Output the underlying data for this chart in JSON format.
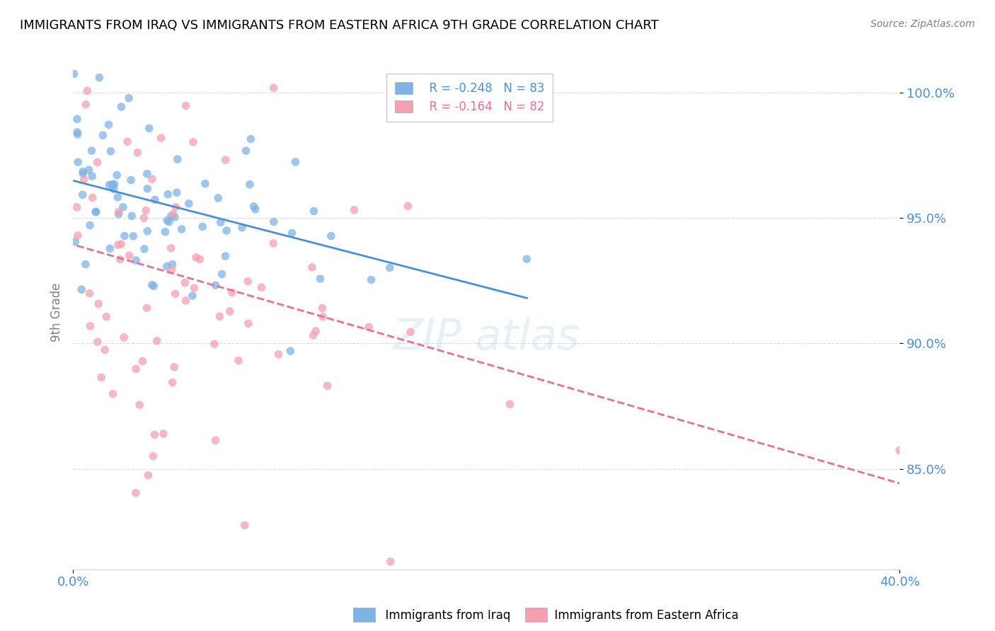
{
  "title": "IMMIGRANTS FROM IRAQ VS IMMIGRANTS FROM EASTERN AFRICA 9TH GRADE CORRELATION CHART",
  "source": "Source: ZipAtlas.com",
  "ylabel": "9th Grade",
  "xlim": [
    0.0,
    40.0
  ],
  "ylim": [
    81.0,
    101.5
  ],
  "yticks": [
    85.0,
    90.0,
    95.0,
    100.0
  ],
  "ytick_labels": [
    "85.0%",
    "90.0%",
    "95.0%",
    "100.0%"
  ],
  "legend_r1": "R = -0.248",
  "legend_n1": "N = 83",
  "legend_r2": "R = -0.164",
  "legend_n2": "N = 82",
  "color_iraq": "#7fb3e8",
  "color_africa": "#f4a0b0",
  "color_trendline_iraq": "#4a90d9",
  "color_trendline_africa": "#e87090"
}
